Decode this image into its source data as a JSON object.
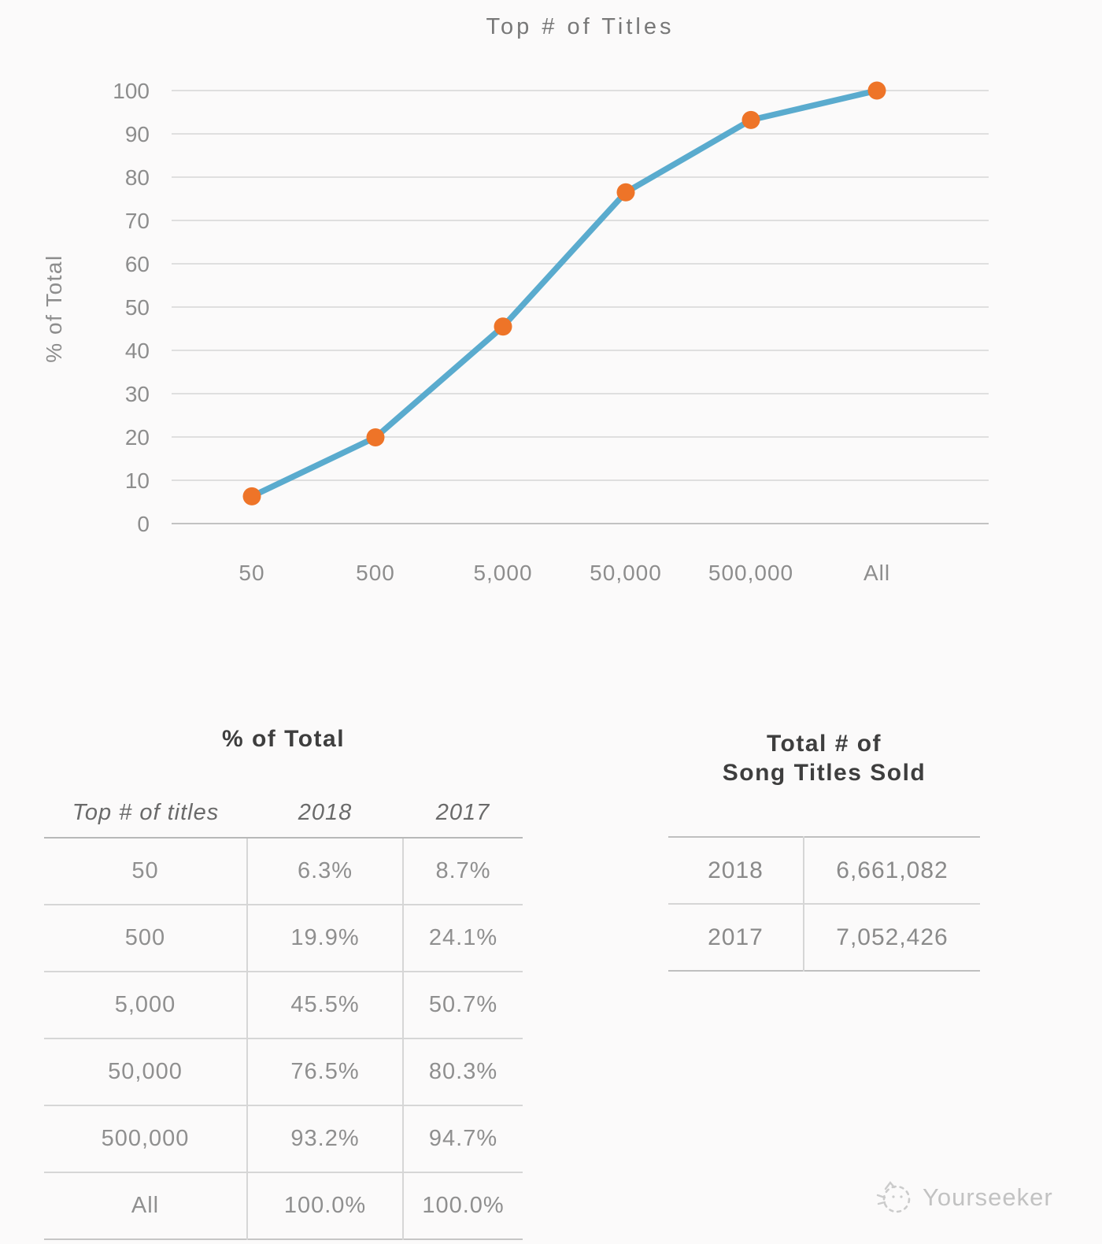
{
  "chart_data": {
    "type": "line",
    "title": "Top # of Titles",
    "xlabel": "",
    "ylabel": "% of Total",
    "categories": [
      "50",
      "500",
      "5,000",
      "50,000",
      "500,000",
      "All"
    ],
    "values": [
      6.3,
      19.9,
      45.5,
      76.5,
      93.2,
      100
    ],
    "ylim": [
      0,
      100
    ],
    "ytick_step": 10,
    "grid": true,
    "legend": "none",
    "line_color": "#5aabce",
    "marker_color": "#ee7428",
    "grid_color": "#d6d6d6",
    "axis_line_color": "#c2c2c2",
    "tick_label_color": "#8d8d8d"
  },
  "tables": {
    "pct_of_total": {
      "title": "% of Total",
      "columns": [
        "Top # of titles",
        "2018",
        "2017"
      ],
      "rows": [
        [
          "50",
          "6.3%",
          "8.7%"
        ],
        [
          "500",
          "19.9%",
          "24.1%"
        ],
        [
          "5,000",
          "45.5%",
          "50.7%"
        ],
        [
          "50,000",
          "76.5%",
          "80.3%"
        ],
        [
          "500,000",
          "93.2%",
          "94.7%"
        ],
        [
          "All",
          "100.0%",
          "100.0%"
        ]
      ]
    },
    "totals": {
      "title_line1": "Total # of",
      "title_line2": "Song Titles Sold",
      "rows": [
        [
          "2018",
          "6,661,082"
        ],
        [
          "2017",
          "7,052,426"
        ]
      ]
    }
  },
  "watermark": {
    "brand": "Yourseeker"
  }
}
